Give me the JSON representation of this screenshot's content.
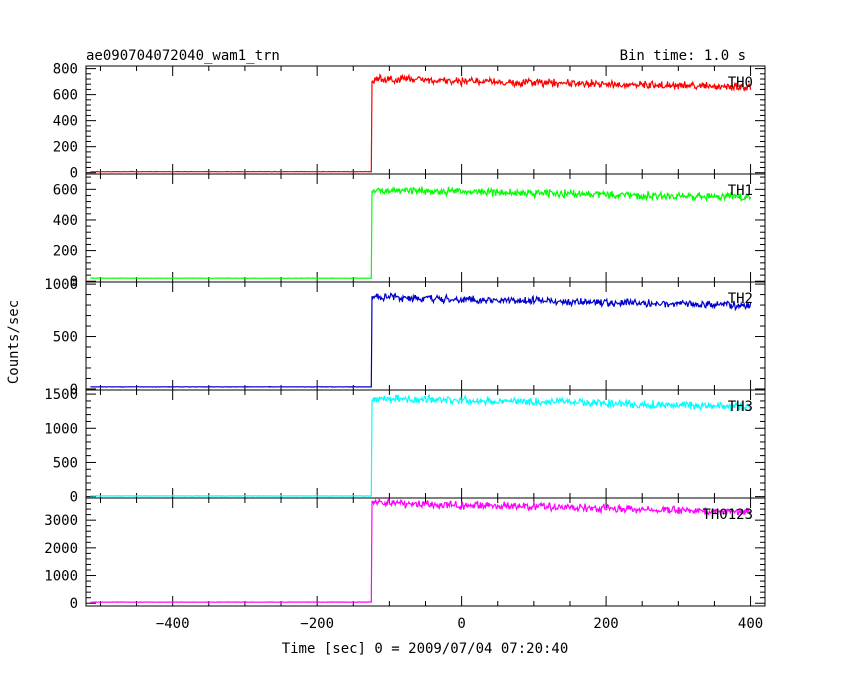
{
  "chart_data": {
    "type": "line",
    "title": "ae090704072040_wam1_trn",
    "subtitle": "Bin time: 1.0 s",
    "xlabel": "Time [sec] 0 = 2009/07/04 07:20:40",
    "ylabel": "Counts/sec",
    "xlim": [
      -520,
      420
    ],
    "x_ticks": [
      -400,
      -200,
      0,
      200,
      400
    ],
    "x_tick_labels": [
      "−400",
      "−200",
      "0",
      "200",
      "400"
    ],
    "grid": false,
    "series": [
      {
        "name": "TH0",
        "color": "#ff0000",
        "ylim": [
          -10,
          820
        ],
        "y_ticks": [
          0,
          200,
          400,
          600,
          800
        ],
        "x": [
          -520,
          -125,
          -124,
          -120,
          -100,
          -50,
          0,
          100,
          200,
          300,
          400
        ],
        "y": [
          8,
          8,
          700,
          720,
          715,
          710,
          705,
          695,
          680,
          670,
          655
        ]
      },
      {
        "name": "TH1",
        "color": "#00ff00",
        "ylim": [
          -5,
          700
        ],
        "y_ticks": [
          0,
          200,
          400,
          600
        ],
        "x": [
          -520,
          -125,
          -124,
          -120,
          -100,
          -50,
          0,
          100,
          200,
          300,
          400
        ],
        "y": [
          20,
          20,
          580,
          590,
          595,
          590,
          585,
          575,
          565,
          555,
          550
        ]
      },
      {
        "name": "TH2",
        "color": "#0000cc",
        "ylim": [
          -10,
          1020
        ],
        "y_ticks": [
          0,
          500,
          1000
        ],
        "x": [
          -520,
          -125,
          -124,
          -120,
          -100,
          -50,
          0,
          100,
          200,
          300,
          400
        ],
        "y": [
          20,
          20,
          860,
          880,
          870,
          860,
          850,
          840,
          820,
          810,
          800
        ]
      },
      {
        "name": "TH3",
        "color": "#00ffff",
        "ylim": [
          -20,
          1560
        ],
        "y_ticks": [
          0,
          500,
          1000,
          1500
        ],
        "x": [
          -520,
          -125,
          -124,
          -120,
          -100,
          -50,
          0,
          100,
          200,
          300,
          400
        ],
        "y": [
          10,
          10,
          1420,
          1430,
          1430,
          1420,
          1410,
          1390,
          1370,
          1340,
          1310
        ]
      },
      {
        "name": "TH0123",
        "color": "#ff00ff",
        "ylim": [
          -100,
          3800
        ],
        "y_ticks": [
          0,
          1000,
          2000,
          3000
        ],
        "x": [
          -520,
          -125,
          -124,
          -120,
          -100,
          -50,
          0,
          100,
          200,
          300,
          400
        ],
        "y": [
          40,
          40,
          3600,
          3620,
          3600,
          3580,
          3540,
          3490,
          3420,
          3350,
          3300
        ]
      }
    ]
  }
}
